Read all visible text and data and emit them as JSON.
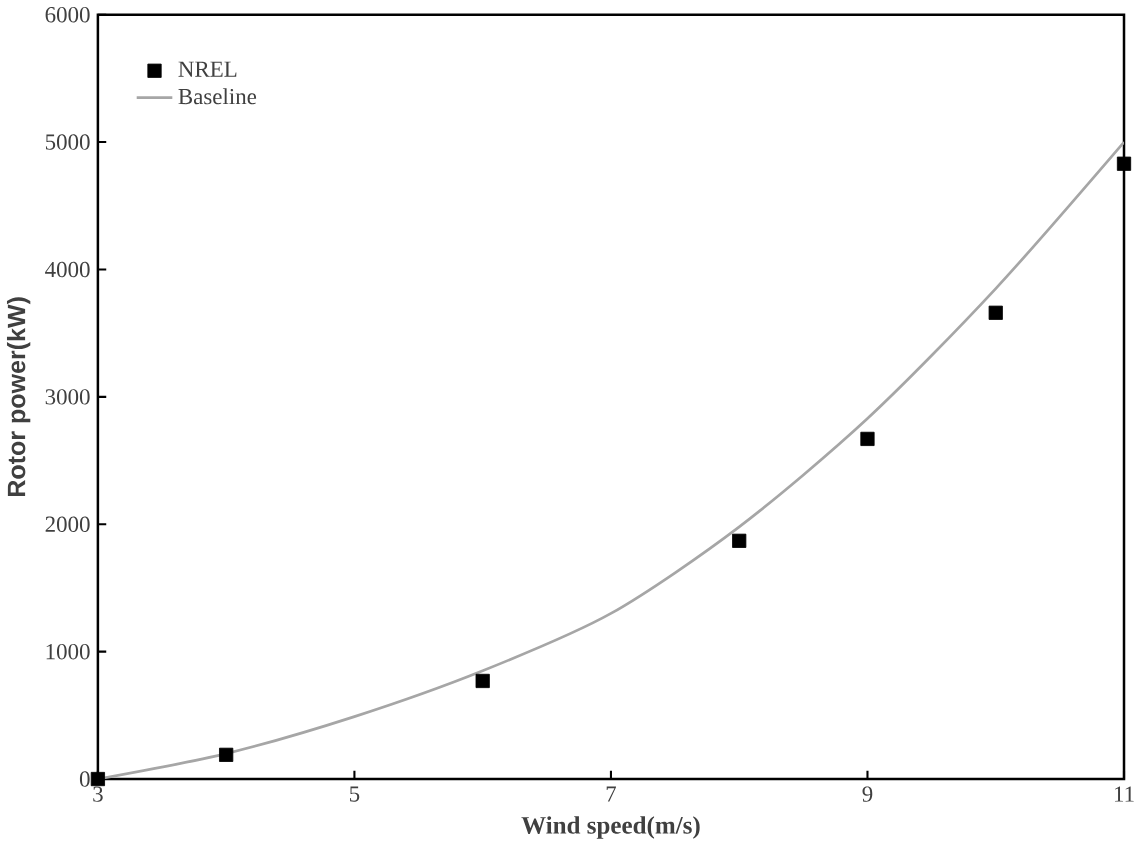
{
  "chart_data": {
    "type": "scatter",
    "xlabel": "Wind speed(m/s)",
    "ylabel": "Rotor power(kW)",
    "xlim": [
      3,
      11
    ],
    "xticks": [
      3,
      5,
      7,
      9,
      11
    ],
    "ylim": [
      0,
      6000
    ],
    "yticks": [
      0,
      1000,
      2000,
      3000,
      4000,
      5000,
      6000
    ],
    "legend": "top left",
    "grid": false,
    "series": [
      {
        "name": "NREL",
        "marker": "square",
        "color": "#000000",
        "x": [
          3,
          4,
          6,
          8,
          9,
          10,
          11
        ],
        "values": [
          0,
          190,
          770,
          1870,
          2670,
          3660,
          4830
        ]
      },
      {
        "name": "Baseline",
        "type": "line",
        "marker": "none",
        "color": "#a6a6a6",
        "x": [
          3,
          4,
          5,
          6,
          7,
          8,
          9,
          10,
          11
        ],
        "values": [
          0,
          200,
          490,
          850,
          1300,
          1980,
          2830,
          3850,
          5000
        ]
      }
    ]
  }
}
